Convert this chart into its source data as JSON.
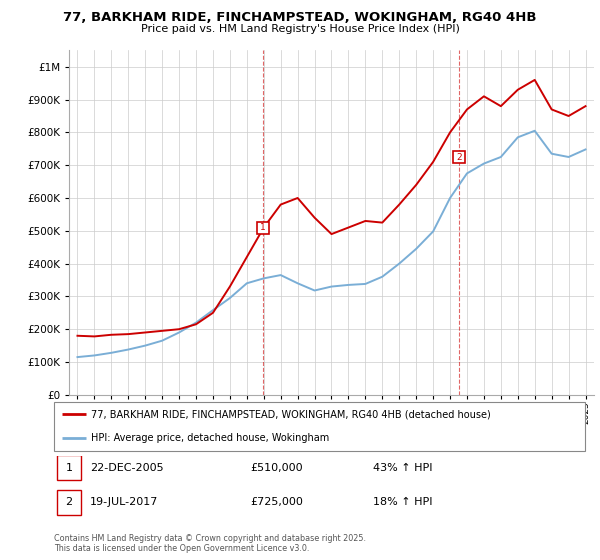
{
  "title": "77, BARKHAM RIDE, FINCHAMPSTEAD, WOKINGHAM, RG40 4HB",
  "subtitle": "Price paid vs. HM Land Registry's House Price Index (HPI)",
  "red_label": "77, BARKHAM RIDE, FINCHAMPSTEAD, WOKINGHAM, RG40 4HB (detached house)",
  "blue_label": "HPI: Average price, detached house, Wokingham",
  "footnote": "Contains HM Land Registry data © Crown copyright and database right 2025.\nThis data is licensed under the Open Government Licence v3.0.",
  "sale1_label": "1",
  "sale1_date": "22-DEC-2005",
  "sale1_price": "£510,000",
  "sale1_hpi": "43% ↑ HPI",
  "sale2_label": "2",
  "sale2_date": "19-JUL-2017",
  "sale2_price": "£725,000",
  "sale2_hpi": "18% ↑ HPI",
  "sale1_x": 2005.97,
  "sale1_y": 510000,
  "sale2_x": 2017.54,
  "sale2_y": 725000,
  "ylim": [
    0,
    1050000
  ],
  "xlim": [
    1994.5,
    2025.5
  ],
  "red_color": "#cc0000",
  "blue_color": "#7aaed6",
  "background_color": "#ffffff",
  "red_years": [
    1995,
    1996,
    1997,
    1998,
    1999,
    2000,
    2001,
    2002,
    2003,
    2004,
    2005,
    2006,
    2007,
    2008,
    2009,
    2010,
    2011,
    2012,
    2013,
    2014,
    2015,
    2016,
    2017,
    2018,
    2019,
    2020,
    2021,
    2022,
    2023,
    2024,
    2025
  ],
  "red_values": [
    180000,
    178000,
    183000,
    185000,
    190000,
    195000,
    200000,
    215000,
    250000,
    330000,
    420000,
    510000,
    580000,
    600000,
    540000,
    490000,
    510000,
    530000,
    525000,
    580000,
    640000,
    710000,
    800000,
    870000,
    910000,
    880000,
    930000,
    960000,
    870000,
    850000,
    880000
  ],
  "blue_years": [
    1995,
    1996,
    1997,
    1998,
    1999,
    2000,
    2001,
    2002,
    2003,
    2004,
    2005,
    2006,
    2007,
    2008,
    2009,
    2010,
    2011,
    2012,
    2013,
    2014,
    2015,
    2016,
    2017,
    2018,
    2019,
    2020,
    2021,
    2022,
    2023,
    2024,
    2025
  ],
  "blue_values": [
    115000,
    120000,
    128000,
    138000,
    150000,
    165000,
    190000,
    220000,
    258000,
    295000,
    340000,
    355000,
    365000,
    340000,
    318000,
    330000,
    335000,
    338000,
    360000,
    400000,
    445000,
    498000,
    600000,
    675000,
    705000,
    725000,
    785000,
    805000,
    735000,
    725000,
    748000
  ]
}
